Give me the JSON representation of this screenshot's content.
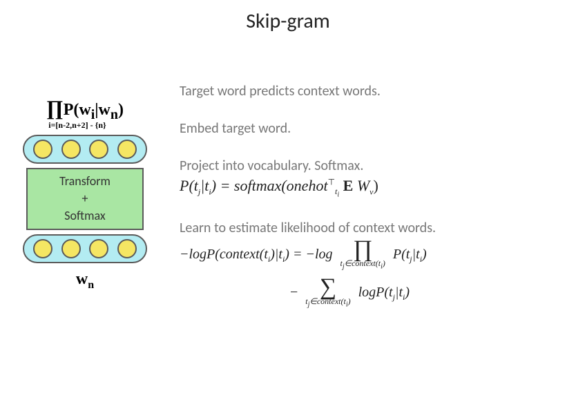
{
  "title": "Skip-gram",
  "colors": {
    "pill_fill": "#b3ecf2",
    "circle_fill": "#f5e663",
    "transform_fill": "#a9e6a3",
    "border": "#5a5a5a",
    "text_gray": "#777777",
    "text_black": "#222222",
    "background": "#ffffff"
  },
  "diagram": {
    "prod_main_pre": "P(w",
    "prod_main_mid": "|w",
    "prod_main_post": ")",
    "prod_pi": "∏",
    "prod_sub_i": "i",
    "prod_sub_n": "n",
    "prod_index": "i=[n-2,n+2] - {n}",
    "transform_line1": "Transform",
    "transform_line2": "+",
    "transform_line3": "Softmax",
    "wn": "w",
    "wn_sub": "n",
    "n_circles": 4
  },
  "explain": {
    "line1": "Target word predicts context words.",
    "line2": "Embed target word.",
    "line3a": "Project into vocabulary. Softmax.",
    "formula3": {
      "lhs_pre": "P(t",
      "lhs_j": "j",
      "lhs_mid": "|t",
      "lhs_i": "i",
      "lhs_post": ") = ",
      "rhs_pre": "softmax(onehot",
      "rhs_sup": "⊤",
      "rhs_sub": "t",
      "rhs_subsub": "i",
      "rhs_mid": " E ",
      "rhs_W": "W",
      "rhs_Wv": "v",
      "rhs_post": ")"
    },
    "line4": "Learn to estimate likelihood of context words.",
    "formula4": {
      "lhs": "−logP(context(t",
      "lhs_i": "i",
      "lhs_mid": ")|t",
      "lhs_i2": "i",
      "lhs_post": ") = −log",
      "prod_sym": "∏",
      "under1_pre": "t",
      "under1_j": "j",
      "under1_mid": "∈context(t",
      "under1_i": "i",
      "under1_post": ")",
      "term_pre": "P(t",
      "term_j": "j",
      "term_mid": "|t",
      "term_i": "i",
      "term_post": ")",
      "line2_pre": "− ",
      "sum_sym": "∑",
      "term2_pre": "logP(t",
      "term2_j": "j",
      "term2_mid": "|t",
      "term2_i": "i",
      "term2_post": ")"
    }
  }
}
